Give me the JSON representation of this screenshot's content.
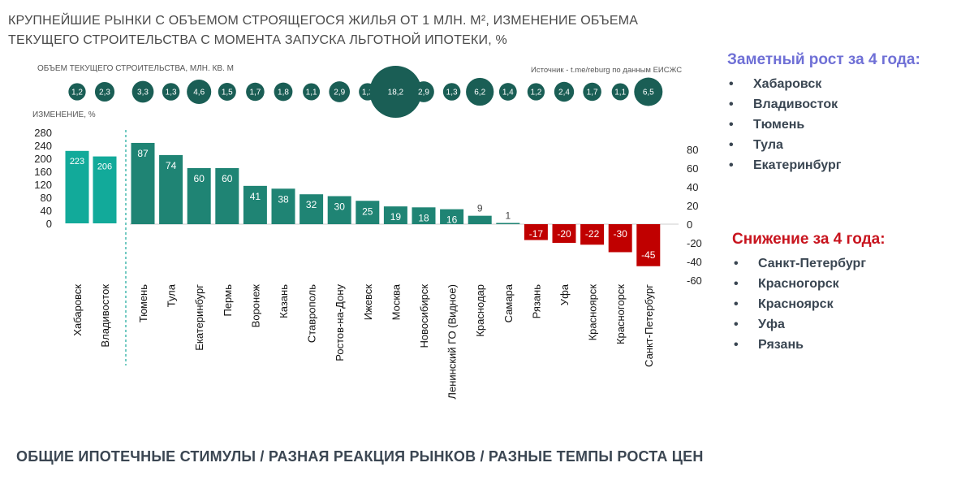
{
  "title": {
    "line1": "КРУПНЕЙШИЕ РЫНКИ С ОБЪЕМОМ СТРОЯЩЕГОСЯ ЖИЛЬЯ ОТ 1 МЛН. М², ИЗМЕНЕНИЕ ОБЪЕМА",
    "line2": "ТЕКУЩЕГО СТРОИТЕЛЬСТВА С МОМЕНТА ЗАПУСКА ЛЬГОТНОЙ ИПОТЕКИ, %"
  },
  "volume_label": "ОБЪЕМ ТЕКУЩЕГО СТРОИТЕЛЬСТВА, МЛН. КВ. М",
  "source": "Источник - t.me/reburg по данным ЕИСЖС",
  "change_label": "ИЗМЕНЕНИЕ, %",
  "growth_panel": {
    "heading": "Заметный рост за 4 года:",
    "bullet": "•",
    "items": [
      "Хабаровск",
      "Владивосток",
      "Тюмень",
      "Тула",
      "Екатеринбург"
    ]
  },
  "decline_panel": {
    "heading": "Снижение за 4 года:",
    "bullet": "•",
    "items": [
      "Санкт-Петербург",
      "Красногорск",
      "Красноярск",
      "Уфа",
      "Рязань"
    ]
  },
  "footer": "ОБЩИЕ ИПОТЕЧНЫЕ СТИМУЛЫ / РАЗНАЯ РЕАКЦИЯ РЫНКОВ / РАЗНЫЕ ТЕМПЫ РОСТА ЦЕН",
  "colors": {
    "left_bars": "#12aa9a",
    "positive_bars": "#1f8474",
    "negative_bars": "#c00000",
    "bubbles": "#1a5e55",
    "separator": "#17a89a"
  },
  "chart_data": {
    "type": "bar",
    "left_panel": {
      "categories": [
        "Хабаровск",
        "Владивосток"
      ],
      "values": [
        223,
        206
      ],
      "volumes": [
        "1,2",
        "2,3"
      ],
      "volume_values": [
        1.2,
        2.3
      ],
      "yticks": [
        0,
        40,
        80,
        120,
        160,
        200,
        240,
        280
      ],
      "ylim": [
        0,
        280
      ]
    },
    "right_panel": {
      "categories": [
        "Тюмень",
        "Тула",
        "Екатеринбург",
        "Пермь",
        "Воронеж",
        "Казань",
        "Ставрополь",
        "Ростов-на-Дону",
        "Ижевск",
        "Москва",
        "Новосибирск",
        "Ленинский ГО (Видное)",
        "Краснодар",
        "Самара",
        "Рязань",
        "Уфа",
        "Красноярск",
        "Красногорск",
        "Санкт-Петербург"
      ],
      "values": [
        87,
        74,
        60,
        60,
        41,
        38,
        32,
        30,
        25,
        19,
        18,
        16,
        9,
        1,
        -17,
        -20,
        -22,
        -30,
        -45
      ],
      "volumes": [
        "3,3",
        "1,3",
        "4,6",
        "1,5",
        "1,7",
        "1,8",
        "1,1",
        "2,9",
        "1,2",
        "18,2",
        "2,9",
        "1,3",
        "6,2",
        "1,4",
        "1,2",
        "2,4",
        "1,7",
        "1,1",
        "6,5"
      ],
      "volume_values": [
        3.3,
        1.3,
        4.6,
        1.5,
        1.7,
        1.8,
        1.1,
        2.9,
        1.2,
        18.2,
        2.9,
        1.3,
        6.2,
        1.4,
        1.2,
        2.4,
        1.7,
        1.1,
        6.5
      ],
      "yticks": [
        -60,
        -40,
        -20,
        0,
        20,
        40,
        60,
        80
      ],
      "ylim": [
        -60,
        80
      ]
    }
  }
}
